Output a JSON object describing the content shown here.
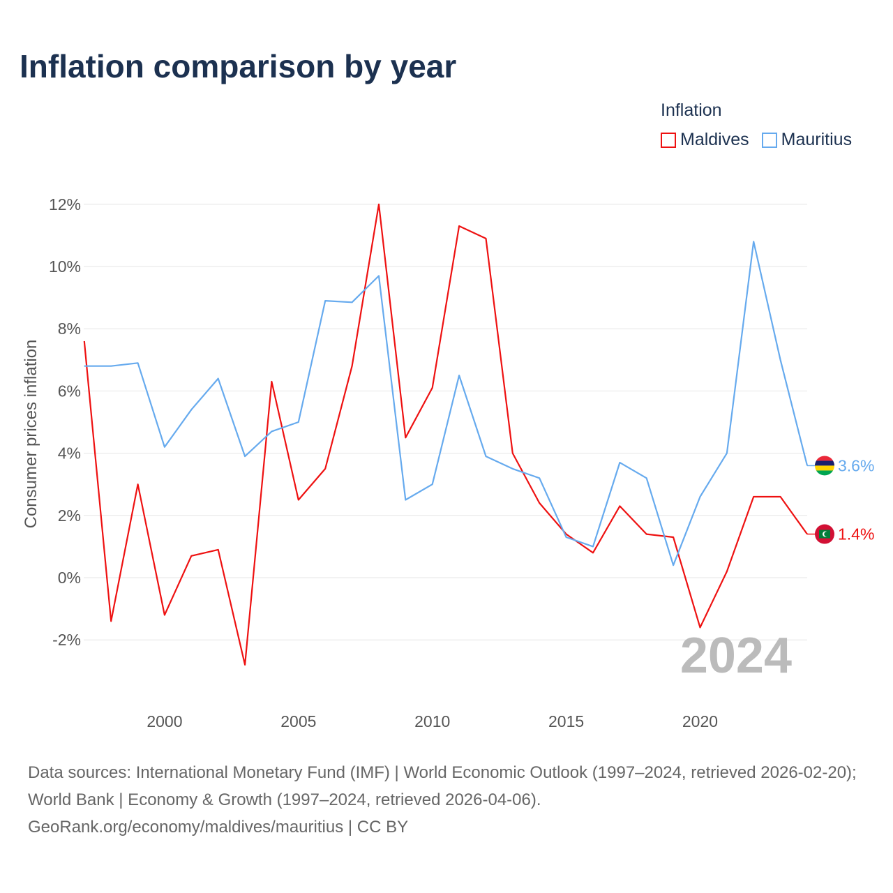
{
  "title": "Inflation comparison by year",
  "legend": {
    "title": "Inflation"
  },
  "footer": {
    "sources": "Data sources: International Monetary Fund (IMF) | World Economic Outlook (1997–2024, retrieved 2026-02-20); World Bank | Economy & Growth (1997–2024, retrieved 2026-04-06).",
    "credit": "GeoRank.org/economy/maldives/mauritius | CC BY"
  },
  "chart_data": {
    "type": "line",
    "title": "Inflation comparison by year",
    "ylabel": "Consumer prices inflation",
    "xlabel": "",
    "ylim": [
      -4,
      12.5
    ],
    "xlim": [
      1997,
      2024
    ],
    "yticks": [
      -2,
      0,
      2,
      4,
      6,
      8,
      10,
      12
    ],
    "ytick_labels": [
      "-2%",
      "0%",
      "2%",
      "4%",
      "6%",
      "8%",
      "10%",
      "12%"
    ],
    "xticks": [
      2000,
      2005,
      2010,
      2015,
      2020
    ],
    "xtick_labels": [
      "2000",
      "2005",
      "2010",
      "2015",
      "2020"
    ],
    "grid": true,
    "legend_position": "top-right",
    "year_watermark": "2024",
    "x": [
      1997,
      1998,
      1999,
      2000,
      2001,
      2002,
      2003,
      2004,
      2005,
      2006,
      2007,
      2008,
      2009,
      2010,
      2011,
      2012,
      2013,
      2014,
      2015,
      2016,
      2017,
      2018,
      2019,
      2020,
      2021,
      2022,
      2023,
      2024
    ],
    "series": [
      {
        "name": "Maldives",
        "color": "#ee1111",
        "end_label": "1.4%",
        "values": [
          7.6,
          -1.4,
          3.0,
          -1.2,
          0.7,
          0.9,
          -2.8,
          6.3,
          2.5,
          3.5,
          6.8,
          12.0,
          4.5,
          6.1,
          11.3,
          10.9,
          4.0,
          2.4,
          1.4,
          0.8,
          2.3,
          1.4,
          1.3,
          -1.6,
          0.2,
          2.6,
          2.6,
          1.4
        ]
      },
      {
        "name": "Mauritius",
        "color": "#66aaee",
        "end_label": "3.6%",
        "values": [
          6.8,
          6.8,
          6.9,
          4.2,
          5.4,
          6.4,
          3.9,
          4.7,
          5.0,
          8.9,
          8.85,
          9.7,
          2.5,
          3.0,
          6.5,
          3.9,
          3.5,
          3.2,
          1.3,
          1.0,
          3.7,
          3.2,
          0.4,
          2.6,
          4.0,
          10.8,
          7.0,
          3.6
        ]
      }
    ]
  }
}
